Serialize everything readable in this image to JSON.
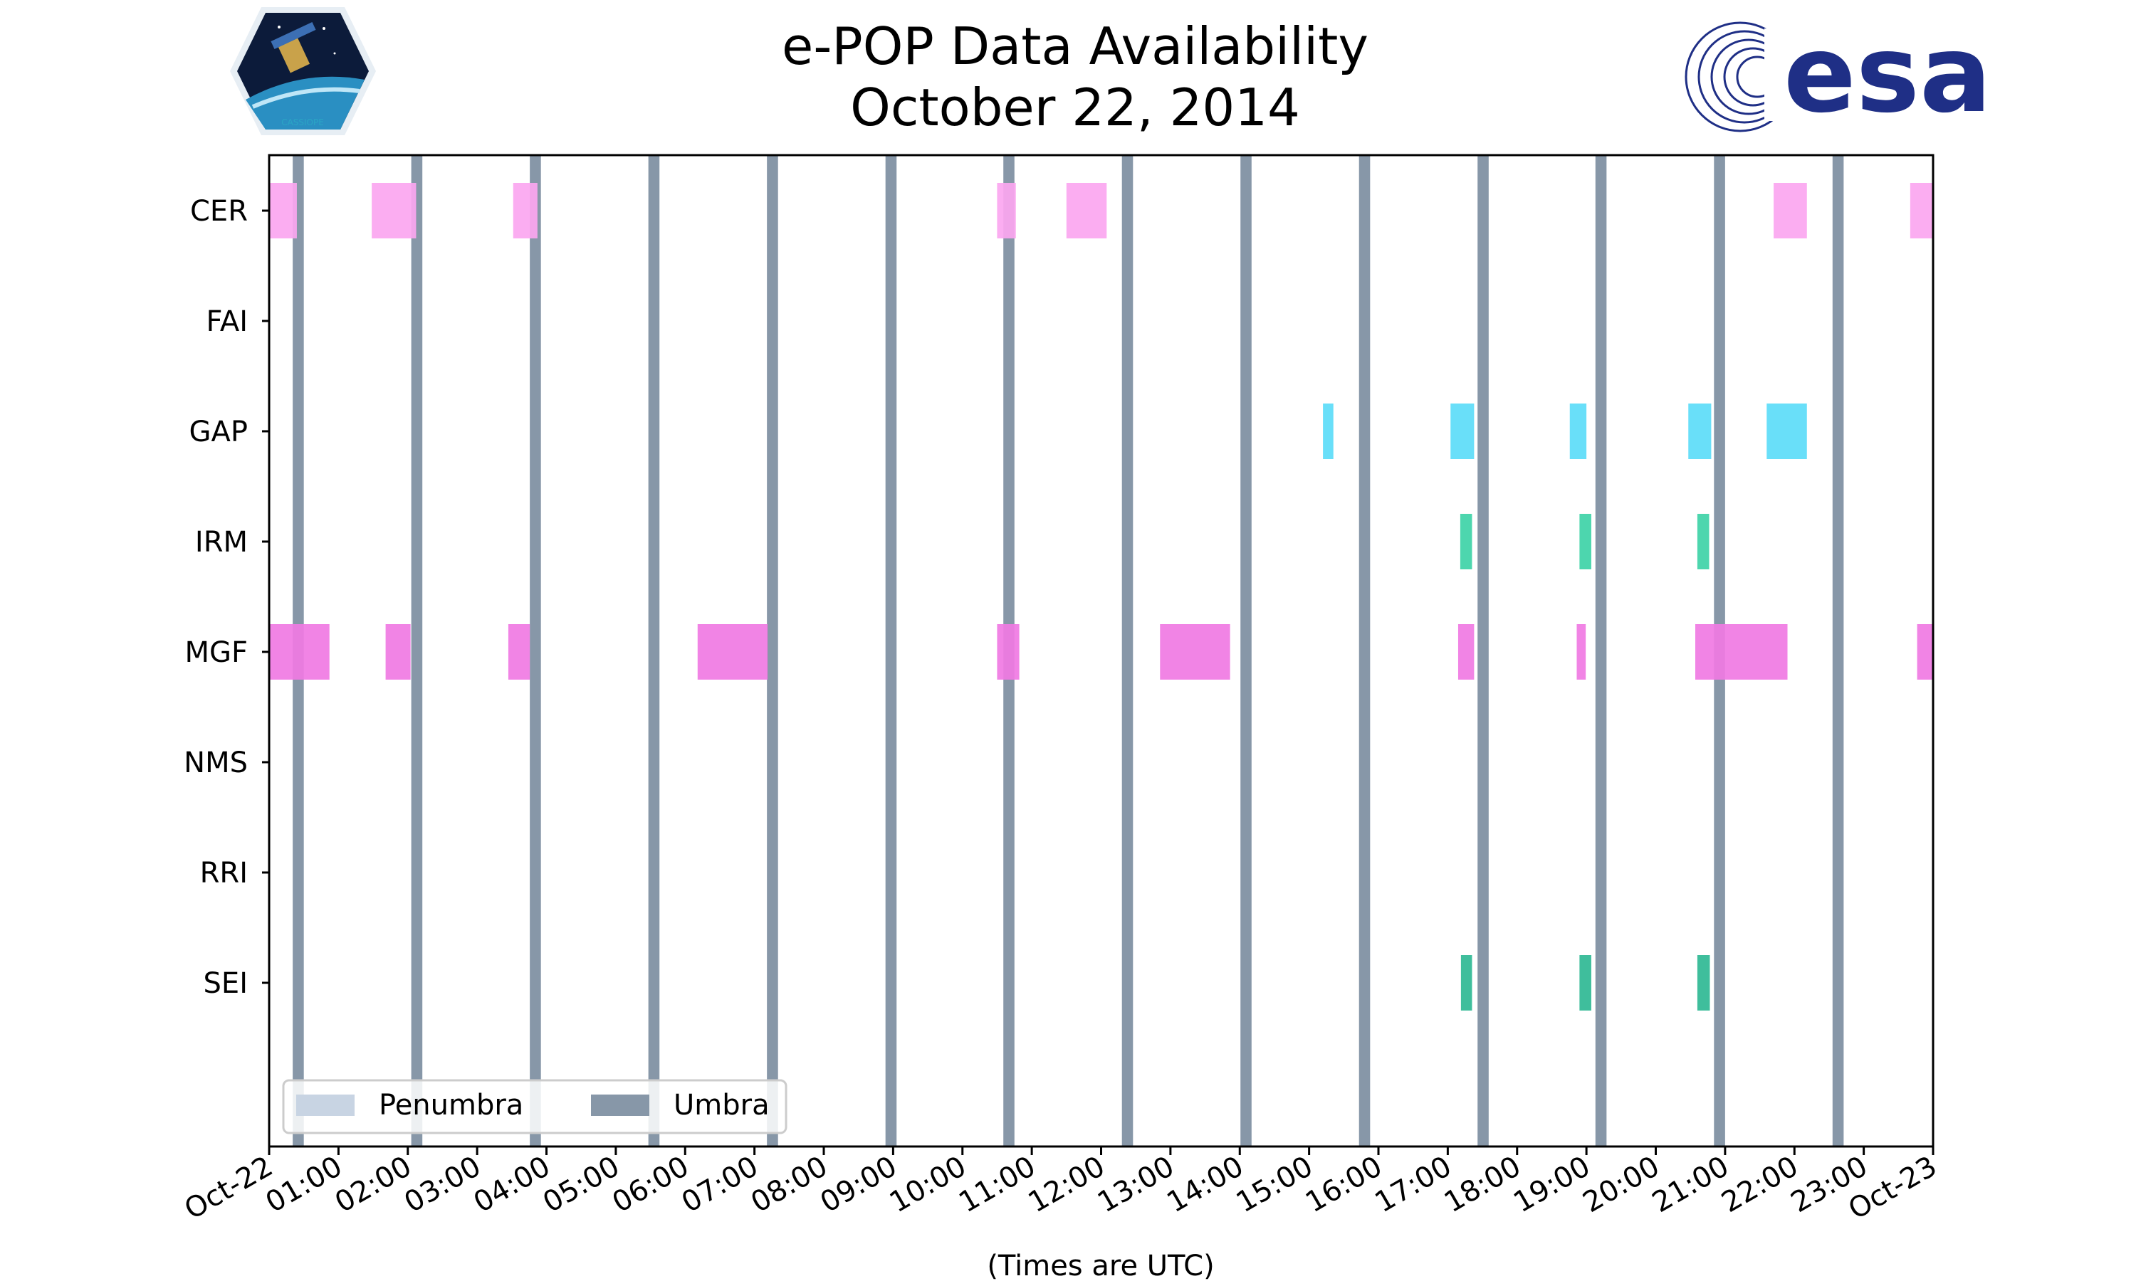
{
  "chart_data": {
    "type": "timeline",
    "title": [
      "e-POP Data Availability",
      "October 22, 2014"
    ],
    "xlabel": "(Times are UTC)",
    "xlim": [
      0,
      24
    ],
    "x_tick_labels": [
      "Oct-22",
      "01:00",
      "02:00",
      "03:00",
      "04:00",
      "05:00",
      "06:00",
      "07:00",
      "08:00",
      "09:00",
      "10:00",
      "11:00",
      "12:00",
      "13:00",
      "14:00",
      "15:00",
      "16:00",
      "17:00",
      "18:00",
      "19:00",
      "20:00",
      "21:00",
      "22:00",
      "23:00",
      "Oct-23"
    ],
    "instruments": [
      "CER",
      "FAI",
      "GAP",
      "IRM",
      "MGF",
      "NMS",
      "RRI",
      "SEI"
    ],
    "umbra_intervals": [
      [
        0.34,
        0.5
      ],
      [
        2.05,
        2.21
      ],
      [
        3.76,
        3.92
      ],
      [
        5.47,
        5.63
      ],
      [
        7.18,
        7.34
      ],
      [
        8.89,
        9.05
      ],
      [
        10.59,
        10.75
      ],
      [
        12.3,
        12.46
      ],
      [
        14.01,
        14.17
      ],
      [
        15.72,
        15.88
      ],
      [
        17.43,
        17.59
      ],
      [
        19.13,
        19.29
      ],
      [
        20.84,
        21.0
      ],
      [
        22.55,
        22.71
      ]
    ],
    "series": [
      {
        "name": "CER",
        "color": "#fba6f0",
        "intervals": [
          [
            0.0,
            0.4
          ],
          [
            1.48,
            2.12
          ],
          [
            3.52,
            3.87
          ],
          [
            10.5,
            10.77
          ],
          [
            11.5,
            12.08
          ],
          [
            21.7,
            22.18
          ],
          [
            23.67,
            24.0
          ]
        ]
      },
      {
        "name": "FAI",
        "color": "#c06fcc",
        "intervals": []
      },
      {
        "name": "GAP",
        "color": "#5cdcf8",
        "intervals": [
          [
            15.2,
            15.35
          ],
          [
            17.04,
            17.38
          ],
          [
            18.76,
            19.0
          ],
          [
            20.47,
            20.8
          ],
          [
            21.6,
            22.18
          ]
        ]
      },
      {
        "name": "IRM",
        "color": "#3ed2a7",
        "intervals": [
          [
            17.18,
            17.35
          ],
          [
            18.9,
            19.07
          ],
          [
            20.6,
            20.77
          ]
        ]
      },
      {
        "name": "MGF",
        "color": "#f07ae3",
        "intervals": [
          [
            0.0,
            0.87
          ],
          [
            1.68,
            2.04
          ],
          [
            3.45,
            3.76
          ],
          [
            6.18,
            7.19
          ],
          [
            10.5,
            10.82
          ],
          [
            12.85,
            13.86
          ],
          [
            17.15,
            17.38
          ],
          [
            18.86,
            18.99
          ],
          [
            20.57,
            21.9
          ],
          [
            23.77,
            24.0
          ]
        ]
      },
      {
        "name": "NMS",
        "color": "#9b7ed6",
        "intervals": []
      },
      {
        "name": "RRI",
        "color": "#8f9bd1",
        "intervals": []
      },
      {
        "name": "SEI",
        "color": "#2fb894",
        "intervals": [
          [
            17.19,
            17.35
          ],
          [
            18.9,
            19.07
          ],
          [
            20.6,
            20.78
          ]
        ]
      }
    ],
    "legend": {
      "position": "lower-left",
      "entries": [
        {
          "label": "Penumbra",
          "color": "#c8d4e3"
        },
        {
          "label": "Umbra",
          "color": "#8797a8"
        }
      ]
    },
    "grid": false
  },
  "logos": {
    "left": "CASSIOPE",
    "right": "esa"
  },
  "colors": {
    "umbra": "#8797a8",
    "penumbra": "#c8d4e3",
    "esa_blue": "#1f2f86"
  }
}
